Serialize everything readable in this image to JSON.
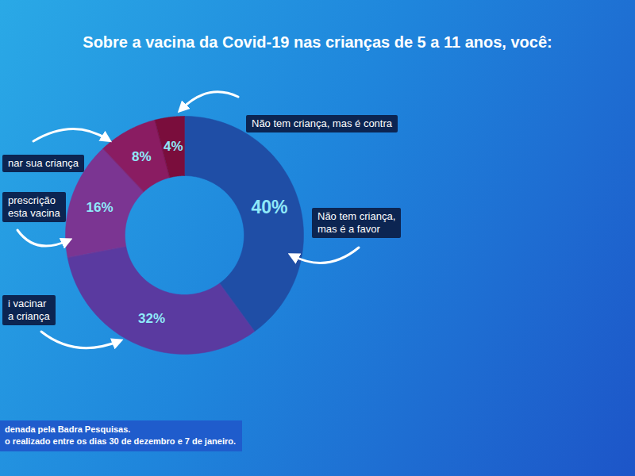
{
  "chart_data": {
    "type": "donut",
    "title": "Sobre a vacina da Covid-19 nas crianças de 5 a 11 anos, você:",
    "categories": [
      "Não tem criança,\nmas é a favor",
      "i vacinar\na criança",
      "prescrição\nesta vacina",
      "nar sua criança",
      "Não tem criança, mas é contra"
    ],
    "values": [
      40,
      32,
      16,
      8,
      4
    ],
    "value_labels": [
      "40%",
      "32%",
      "16%",
      "8%",
      "4%"
    ],
    "colors": [
      "#1f4ea6",
      "#5a3aa0",
      "#7b3592",
      "#8a1c62",
      "#7a0d3c"
    ],
    "data_labels": true,
    "caption": [
      "denada pela Badra Pesquisas.",
      "o realizado entre os dias 30 de dezembro e 7 de janeiro."
    ]
  }
}
